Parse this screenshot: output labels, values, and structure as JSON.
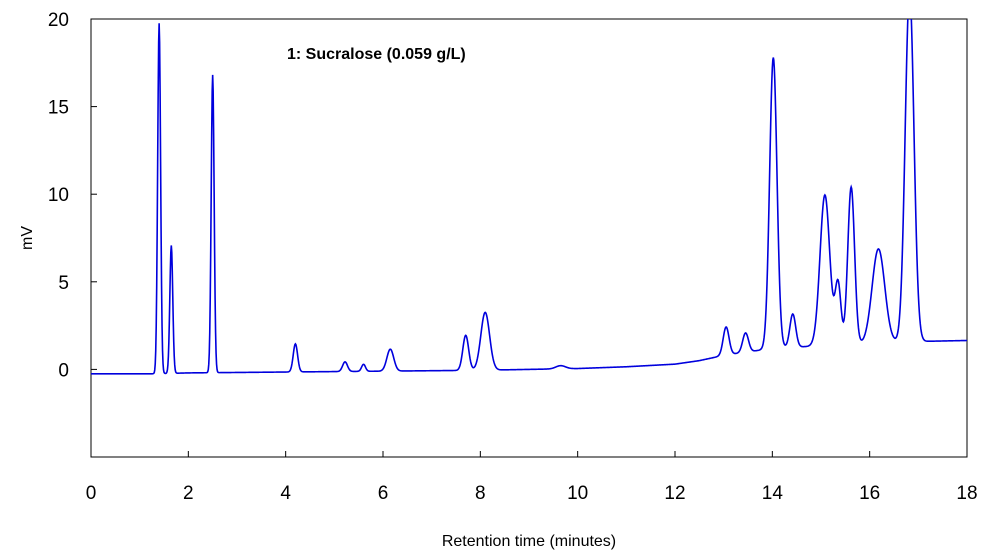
{
  "chart_data": {
    "type": "line",
    "title": "",
    "annotation": "1: Sucralose (0.059 g/L)",
    "xlabel": "Retention time (minutes)",
    "ylabel": "mV",
    "xlim": [
      0,
      18
    ],
    "ylim": [
      -5,
      20
    ],
    "xticks": [
      "0",
      "2",
      "4",
      "6",
      "8",
      "10",
      "12",
      "14",
      "16",
      "18"
    ],
    "yticks": [
      "0",
      "5",
      "10",
      "15",
      "20"
    ],
    "grid": false,
    "line_color": "#0000dd",
    "baseline": [
      [
        0.0,
        -0.25
      ],
      [
        1.3,
        -0.25
      ],
      [
        2.0,
        -0.2
      ],
      [
        4.0,
        -0.15
      ],
      [
        6.0,
        -0.1
      ],
      [
        8.0,
        -0.05
      ],
      [
        10.0,
        0.05
      ],
      [
        11.0,
        0.15
      ],
      [
        12.0,
        0.3
      ],
      [
        12.5,
        0.5
      ],
      [
        13.0,
        0.8
      ],
      [
        13.5,
        1.0
      ],
      [
        14.0,
        1.2
      ],
      [
        15.0,
        1.35
      ],
      [
        16.0,
        1.45
      ],
      [
        16.7,
        1.55
      ],
      [
        17.1,
        1.6
      ],
      [
        18.0,
        1.65
      ]
    ],
    "peaks": [
      {
        "rt": 1.4,
        "height": 20.0,
        "width": 0.03
      },
      {
        "rt": 1.65,
        "height": 7.3,
        "width": 0.03
      },
      {
        "rt": 2.5,
        "height": 17.0,
        "width": 0.03
      },
      {
        "rt": 4.2,
        "height": 1.6,
        "width": 0.045
      },
      {
        "rt": 5.22,
        "height": 0.55,
        "width": 0.05
      },
      {
        "rt": 5.6,
        "height": 0.4,
        "width": 0.04
      },
      {
        "rt": 6.15,
        "height": 1.25,
        "width": 0.07
      },
      {
        "rt": 7.7,
        "height": 2.0,
        "width": 0.06
      },
      {
        "rt": 8.1,
        "height": 3.3,
        "width": 0.09
      },
      {
        "rt": 9.65,
        "height": 0.18,
        "width": 0.1
      },
      {
        "rt": 13.05,
        "height": 1.6,
        "width": 0.06
      },
      {
        "rt": 13.45,
        "height": 1.1,
        "width": 0.06
      },
      {
        "rt": 14.02,
        "height": 16.6,
        "width": 0.075
      },
      {
        "rt": 14.42,
        "height": 1.9,
        "width": 0.06
      },
      {
        "rt": 15.08,
        "height": 8.6,
        "width": 0.1
      },
      {
        "rt": 15.35,
        "height": 3.5,
        "width": 0.06
      },
      {
        "rt": 15.62,
        "height": 9.0,
        "width": 0.07
      },
      {
        "rt": 16.18,
        "height": 5.4,
        "width": 0.13
      },
      {
        "rt": 16.82,
        "height": 20.0,
        "width": 0.09
      }
    ]
  }
}
